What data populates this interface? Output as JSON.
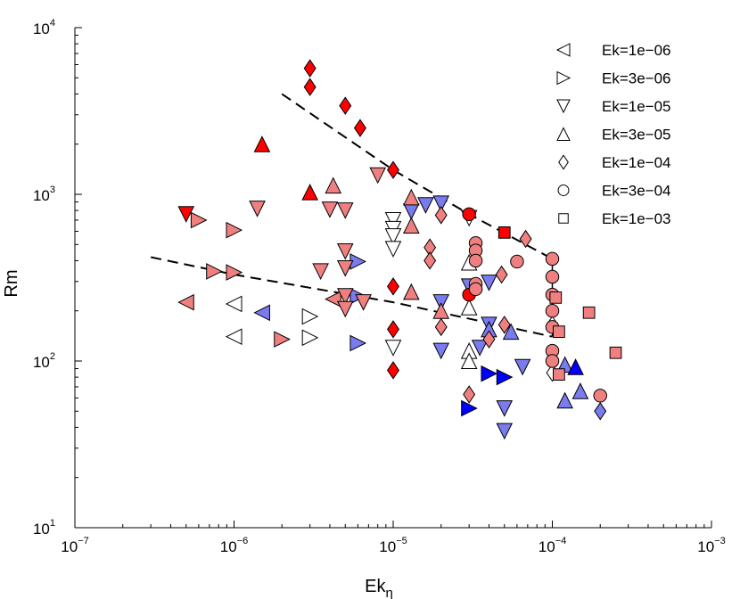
{
  "chart_data": {
    "type": "scatter",
    "xscale": "log",
    "yscale": "log",
    "xlim": [
      1e-07,
      0.001
    ],
    "ylim": [
      10,
      10000
    ],
    "xlabel": "Ek",
    "xlabel_subscript": "η",
    "ylabel": "Rm",
    "x_ticks": [
      {
        "value": 1e-07,
        "base": "10",
        "exp": "−7"
      },
      {
        "value": 1e-06,
        "base": "10",
        "exp": "−6"
      },
      {
        "value": 1e-05,
        "base": "10",
        "exp": "−5"
      },
      {
        "value": 0.0001,
        "base": "10",
        "exp": "−4"
      },
      {
        "value": 0.001,
        "base": "10",
        "exp": "−3"
      }
    ],
    "y_ticks": [
      {
        "value": 10,
        "base": "10",
        "exp": "1"
      },
      {
        "value": 100,
        "base": "10",
        "exp": "2"
      },
      {
        "value": 1000,
        "base": "10",
        "exp": "3"
      },
      {
        "value": 10000,
        "base": "10",
        "exp": "4"
      }
    ],
    "colors": {
      "red": "#ff0000",
      "pink": "#f08080",
      "blue": "#0000ff",
      "lightblue": "#7b7bf0",
      "white": "#ffffff"
    },
    "legend": [
      {
        "label": "Ek=1e−06",
        "marker": "tri-left"
      },
      {
        "label": "Ek=3e−06",
        "marker": "tri-right"
      },
      {
        "label": "Ek=1e−05",
        "marker": "tri-down"
      },
      {
        "label": "Ek=3e−05",
        "marker": "tri-up"
      },
      {
        "label": "Ek=1e−04",
        "marker": "diamond"
      },
      {
        "label": "Ek=3e−04",
        "marker": "circle"
      },
      {
        "label": "Ek=1e−03",
        "marker": "square"
      }
    ],
    "fit_lines": [
      {
        "name": "upper-fit",
        "points": [
          [
            2e-06,
            4000
          ],
          [
            1e-05,
            1400
          ],
          [
            3e-05,
            760
          ],
          [
            0.0001,
            410
          ]
        ]
      },
      {
        "name": "lower-fit",
        "points": [
          [
            3e-07,
            420
          ],
          [
            1e-06,
            330
          ],
          [
            1e-05,
            225
          ],
          [
            0.0001,
            140
          ]
        ]
      }
    ],
    "vertical_segment": {
      "x": 0.0001,
      "y_from": 140,
      "y_to": 410
    },
    "series": [
      {
        "name": "Ek=1e-06",
        "marker": "tri-left",
        "points": [
          {
            "x": 5e-07,
            "y": 225,
            "c": "pink"
          },
          {
            "x": 1e-06,
            "y": 220,
            "c": "white"
          },
          {
            "x": 1e-06,
            "y": 140,
            "c": "white"
          },
          {
            "x": 4.2e-06,
            "y": 235,
            "c": "pink"
          },
          {
            "x": 1.5e-06,
            "y": 195,
            "c": "lightblue"
          }
        ]
      },
      {
        "name": "Ek=3e-06",
        "marker": "tri-right",
        "points": [
          {
            "x": 6e-07,
            "y": 700,
            "c": "pink"
          },
          {
            "x": 1e-06,
            "y": 610,
            "c": "pink"
          },
          {
            "x": 7.5e-07,
            "y": 345,
            "c": "pink"
          },
          {
            "x": 1e-06,
            "y": 340,
            "c": "pink"
          },
          {
            "x": 6e-06,
            "y": 395,
            "c": "lightblue"
          },
          {
            "x": 6e-06,
            "y": 245,
            "c": "lightblue"
          },
          {
            "x": 6e-06,
            "y": 128,
            "c": "lightblue"
          },
          {
            "x": 3e-06,
            "y": 185,
            "c": "white"
          },
          {
            "x": 2e-06,
            "y": 135,
            "c": "pink"
          },
          {
            "x": 3e-06,
            "y": 138,
            "c": "white"
          },
          {
            "x": 3e-05,
            "y": 52,
            "c": "blue"
          },
          {
            "x": 4e-05,
            "y": 84,
            "c": "blue"
          },
          {
            "x": 5e-05,
            "y": 80,
            "c": "blue"
          }
        ]
      },
      {
        "name": "Ek=1e-05",
        "marker": "tri-down",
        "points": [
          {
            "x": 5e-07,
            "y": 760,
            "c": "red"
          },
          {
            "x": 1.4e-06,
            "y": 820,
            "c": "pink"
          },
          {
            "x": 3.5e-06,
            "y": 345,
            "c": "pink"
          },
          {
            "x": 4e-06,
            "y": 810,
            "c": "pink"
          },
          {
            "x": 5e-06,
            "y": 800,
            "c": "pink"
          },
          {
            "x": 5e-06,
            "y": 455,
            "c": "pink"
          },
          {
            "x": 5e-06,
            "y": 360,
            "c": "pink"
          },
          {
            "x": 5e-06,
            "y": 245,
            "c": "pink"
          },
          {
            "x": 5e-06,
            "y": 205,
            "c": "pink"
          },
          {
            "x": 6.5e-06,
            "y": 225,
            "c": "pink"
          },
          {
            "x": 8e-06,
            "y": 1300,
            "c": "pink"
          },
          {
            "x": 1e-05,
            "y": 700,
            "c": "white"
          },
          {
            "x": 1e-05,
            "y": 620,
            "c": "white"
          },
          {
            "x": 1e-05,
            "y": 560,
            "c": "white"
          },
          {
            "x": 1e-05,
            "y": 470,
            "c": "white"
          },
          {
            "x": 1e-05,
            "y": 120,
            "c": "white"
          },
          {
            "x": 1.3e-05,
            "y": 790,
            "c": "lightblue"
          },
          {
            "x": 1.6e-05,
            "y": 860,
            "c": "lightblue"
          },
          {
            "x": 2e-05,
            "y": 880,
            "c": "lightblue"
          },
          {
            "x": 2e-05,
            "y": 225,
            "c": "lightblue"
          },
          {
            "x": 2e-05,
            "y": 115,
            "c": "lightblue"
          },
          {
            "x": 3e-05,
            "y": 720,
            "c": "white"
          },
          {
            "x": 3e-05,
            "y": 280,
            "c": "lightblue"
          },
          {
            "x": 4e-05,
            "y": 295,
            "c": "lightblue"
          },
          {
            "x": 3.5e-05,
            "y": 120,
            "c": "lightblue"
          },
          {
            "x": 4e-05,
            "y": 165,
            "c": "lightblue"
          },
          {
            "x": 6.5e-05,
            "y": 92,
            "c": "lightblue"
          },
          {
            "x": 5e-05,
            "y": 52,
            "c": "lightblue"
          },
          {
            "x": 5e-05,
            "y": 38,
            "c": "lightblue"
          }
        ]
      },
      {
        "name": "Ek=3e-05",
        "marker": "tri-up",
        "points": [
          {
            "x": 1.5e-06,
            "y": 2000,
            "c": "red"
          },
          {
            "x": 3e-06,
            "y": 1030,
            "c": "red"
          },
          {
            "x": 4.2e-06,
            "y": 1130,
            "c": "pink"
          },
          {
            "x": 1.3e-05,
            "y": 960,
            "c": "pink"
          },
          {
            "x": 1.3e-05,
            "y": 260,
            "c": "pink"
          },
          {
            "x": 1.3e-05,
            "y": 650,
            "c": "pink"
          },
          {
            "x": 3e-05,
            "y": 390,
            "c": "white"
          },
          {
            "x": 3e-05,
            "y": 210,
            "c": "white"
          },
          {
            "x": 3e-05,
            "y": 115,
            "c": "white"
          },
          {
            "x": 3e-05,
            "y": 100,
            "c": "white"
          },
          {
            "x": 4e-05,
            "y": 155,
            "c": "lightblue"
          },
          {
            "x": 5.5e-05,
            "y": 150,
            "c": "lightblue"
          },
          {
            "x": 0.00012,
            "y": 95,
            "c": "lightblue"
          },
          {
            "x": 0.00014,
            "y": 92,
            "c": "blue"
          },
          {
            "x": 0.00012,
            "y": 58,
            "c": "lightblue"
          },
          {
            "x": 0.00015,
            "y": 66,
            "c": "lightblue"
          },
          {
            "x": 2e-05,
            "y": 200,
            "c": "pink"
          }
        ]
      },
      {
        "name": "Ek=1e-04",
        "marker": "diamond",
        "points": [
          {
            "x": 3e-06,
            "y": 5700,
            "c": "red"
          },
          {
            "x": 3e-06,
            "y": 4400,
            "c": "red"
          },
          {
            "x": 5e-06,
            "y": 3400,
            "c": "red"
          },
          {
            "x": 6.2e-06,
            "y": 2500,
            "c": "red"
          },
          {
            "x": 1e-05,
            "y": 1400,
            "c": "red"
          },
          {
            "x": 1e-05,
            "y": 280,
            "c": "red"
          },
          {
            "x": 1e-05,
            "y": 155,
            "c": "red"
          },
          {
            "x": 1e-05,
            "y": 88,
            "c": "red"
          },
          {
            "x": 1.7e-05,
            "y": 480,
            "c": "pink"
          },
          {
            "x": 1.7e-05,
            "y": 400,
            "c": "pink"
          },
          {
            "x": 2e-05,
            "y": 750,
            "c": "pink"
          },
          {
            "x": 2e-05,
            "y": 160,
            "c": "pink"
          },
          {
            "x": 3e-05,
            "y": 63,
            "c": "pink"
          },
          {
            "x": 4e-05,
            "y": 135,
            "c": "pink"
          },
          {
            "x": 4.8e-05,
            "y": 330,
            "c": "pink"
          },
          {
            "x": 5e-05,
            "y": 165,
            "c": "pink"
          },
          {
            "x": 6.8e-05,
            "y": 540,
            "c": "pink"
          },
          {
            "x": 0.0001,
            "y": 165,
            "c": "white"
          },
          {
            "x": 0.0001,
            "y": 85,
            "c": "white"
          },
          {
            "x": 0.0002,
            "y": 50,
            "c": "lightblue"
          }
        ]
      },
      {
        "name": "Ek=3e-04",
        "marker": "circle",
        "points": [
          {
            "x": 3e-05,
            "y": 760,
            "c": "red"
          },
          {
            "x": 3e-05,
            "y": 250,
            "c": "red"
          },
          {
            "x": 3.3e-05,
            "y": 510,
            "c": "pink"
          },
          {
            "x": 3.3e-05,
            "y": 460,
            "c": "pink"
          },
          {
            "x": 3.3e-05,
            "y": 400,
            "c": "pink"
          },
          {
            "x": 3.3e-05,
            "y": 290,
            "c": "pink"
          },
          {
            "x": 3.3e-05,
            "y": 270,
            "c": "pink"
          },
          {
            "x": 6e-05,
            "y": 395,
            "c": "pink"
          },
          {
            "x": 0.0001,
            "y": 410,
            "c": "pink"
          },
          {
            "x": 0.0001,
            "y": 320,
            "c": "pink"
          },
          {
            "x": 0.0001,
            "y": 250,
            "c": "pink"
          },
          {
            "x": 0.0001,
            "y": 200,
            "c": "pink"
          },
          {
            "x": 0.0001,
            "y": 160,
            "c": "pink"
          },
          {
            "x": 0.0001,
            "y": 115,
            "c": "pink"
          },
          {
            "x": 0.0001,
            "y": 100,
            "c": "pink"
          },
          {
            "x": 0.0002,
            "y": 62,
            "c": "pink"
          }
        ]
      },
      {
        "name": "Ek=1e-03",
        "marker": "square",
        "points": [
          {
            "x": 5e-05,
            "y": 590,
            "c": "red"
          },
          {
            "x": 0.000105,
            "y": 240,
            "c": "pink"
          },
          {
            "x": 0.00011,
            "y": 150,
            "c": "pink"
          },
          {
            "x": 0.00011,
            "y": 83,
            "c": "pink"
          },
          {
            "x": 0.00017,
            "y": 195,
            "c": "pink"
          },
          {
            "x": 0.00025,
            "y": 112,
            "c": "pink"
          }
        ]
      }
    ]
  }
}
